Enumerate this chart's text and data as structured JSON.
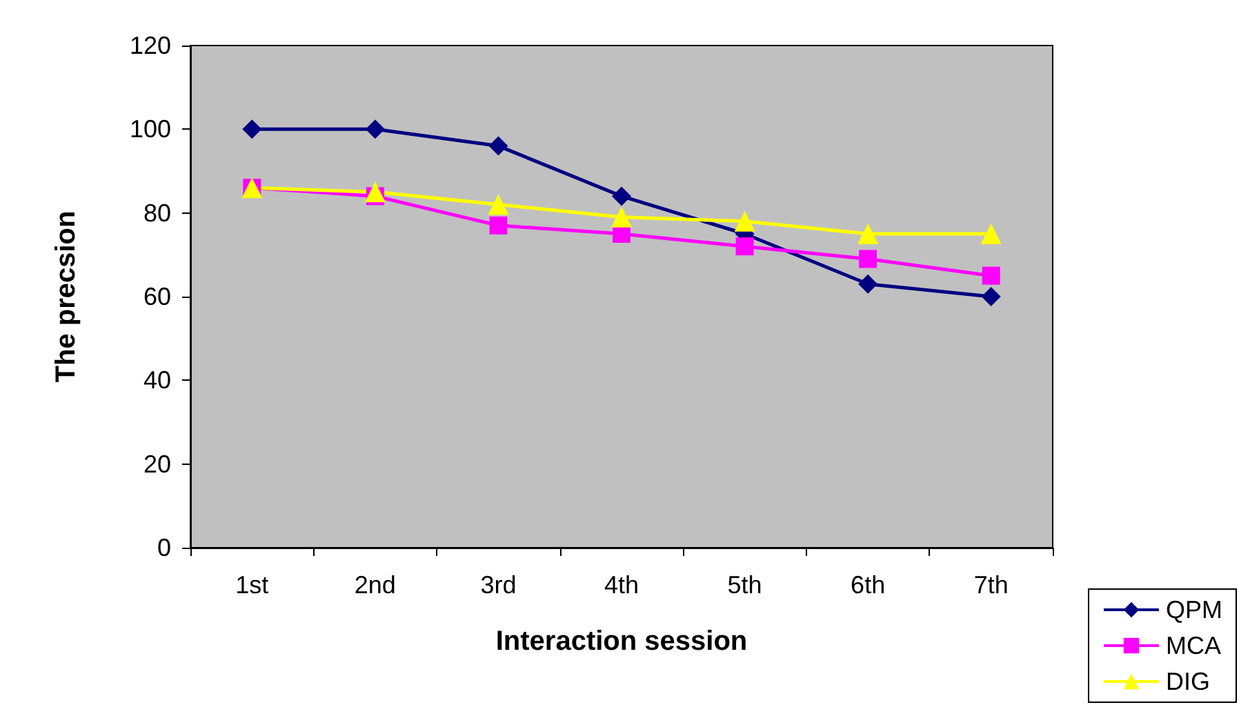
{
  "chart_data": {
    "type": "line",
    "xlabel": "Interaction session",
    "ylabel": "The precsion",
    "categories": [
      "1st",
      "2nd",
      "3rd",
      "4th",
      "5th",
      "6th",
      "7th"
    ],
    "ylim": [
      0,
      120
    ],
    "yticks": [
      0,
      20,
      40,
      60,
      80,
      100,
      120
    ],
    "grid": false,
    "legend": "bottom right",
    "series": [
      {
        "name": "QPM",
        "color": "#000080",
        "marker": "diamond",
        "values": [
          100,
          100,
          96,
          84,
          75,
          63,
          60
        ]
      },
      {
        "name": "MCA",
        "color": "#ff00ff",
        "marker": "square",
        "values": [
          86,
          84,
          77,
          75,
          72,
          69,
          65
        ]
      },
      {
        "name": "DIG",
        "color": "#ffff00",
        "marker": "triangle",
        "values": [
          86,
          85,
          82,
          79,
          78,
          75,
          75
        ]
      }
    ]
  }
}
